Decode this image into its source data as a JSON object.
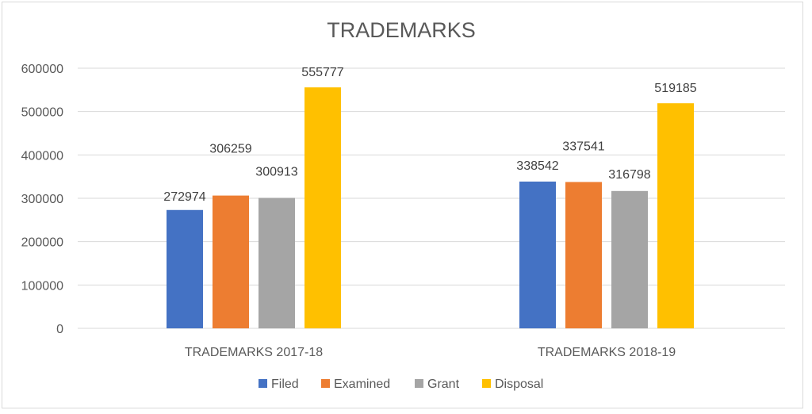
{
  "chart_data": {
    "type": "bar",
    "title": "TRADEMARKS",
    "xlabel": "",
    "ylabel": "",
    "categories": [
      "TRADEMARKS 2017-18",
      "TRADEMARKS 2018-19"
    ],
    "series": [
      {
        "name": "Filed",
        "color": "#4472c4",
        "values": [
          272974,
          338542
        ]
      },
      {
        "name": "Examined",
        "color": "#ed7d31",
        "values": [
          306259,
          337541
        ]
      },
      {
        "name": "Grant",
        "color": "#a5a5a5",
        "values": [
          300913,
          316798
        ]
      },
      {
        "name": "Disposal",
        "color": "#ffc000",
        "values": [
          555777,
          519185
        ]
      }
    ],
    "ylim": [
      0,
      600000
    ],
    "y_ticks": [
      "0",
      "100000",
      "200000",
      "300000",
      "400000",
      "500000",
      "600000"
    ],
    "grid": true,
    "legend_position": "bottom"
  }
}
